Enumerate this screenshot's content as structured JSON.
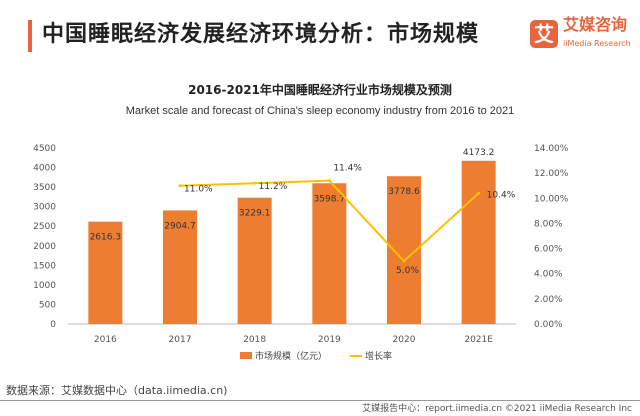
{
  "header": {
    "title": "中国睡眠经济发展经济环境分析：市场规模",
    "logo_mark": "艾",
    "logo_cn": "艾媒咨询",
    "logo_en": "iiMedia Research"
  },
  "chart_data": {
    "type": "bar+line",
    "title": "2016-2021年中国睡眠经济行业市场规模及预测",
    "subtitle": "Market scale and forecast of China's sleep economy industry from 2016 to 2021",
    "categories": [
      "2016",
      "2017",
      "2018",
      "2019",
      "2020",
      "2021E"
    ],
    "series": [
      {
        "name": "市场规模（亿元）",
        "type": "bar",
        "axis": "left",
        "color": "#ed7d31",
        "values": [
          2616.3,
          2904.7,
          3229.1,
          3598.7,
          3778.6,
          4173.2
        ],
        "labels": [
          "2616.3",
          "2904.7",
          "3229.1",
          "3598.7",
          "3778.6",
          "4173.2"
        ]
      },
      {
        "name": "增长率",
        "type": "line",
        "axis": "right",
        "color": "#ffc000",
        "values": [
          null,
          11.0,
          11.2,
          11.4,
          5.0,
          10.4
        ],
        "labels": [
          "",
          "11.0%",
          "11.2%",
          "11.4%",
          "5.0%",
          "10.4%"
        ]
      }
    ],
    "y_left": {
      "range": [
        0,
        4500
      ],
      "ticks": [
        "0",
        "500",
        "1000",
        "1500",
        "2000",
        "2500",
        "3000",
        "3500",
        "4000",
        "4500"
      ]
    },
    "y_right": {
      "range": [
        0,
        14
      ],
      "ticks": [
        "0.00%",
        "2.00%",
        "4.00%",
        "6.00%",
        "8.00%",
        "10.00%",
        "12.00%",
        "14.00%"
      ]
    },
    "grid": false,
    "legend": "bottom"
  },
  "footer": {
    "source": "数据来源：艾媒数据中心（data.iimedia.cn)",
    "credit": "艾媒报告中心：report.iimedia.cn  ©2021  iiMedia Research Inc"
  }
}
